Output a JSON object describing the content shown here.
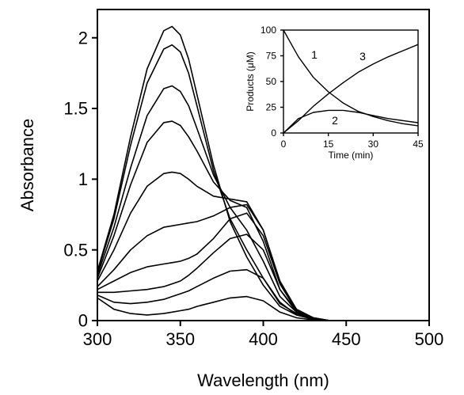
{
  "chart_data": [
    {
      "type": "line",
      "xlabel": "Wavelength (nm)",
      "ylabel": "Absorbance",
      "xlim": [
        300,
        500
      ],
      "ylim": [
        0,
        2.2
      ],
      "x_ticks": [
        300,
        350,
        400,
        450,
        500
      ],
      "x_tick_labels": [
        "300",
        "350",
        "400",
        "450",
        "500"
      ],
      "y_ticks": [
        0,
        0.5,
        1,
        1.5,
        2
      ],
      "y_tick_labels": [
        "0",
        "0.5",
        "1",
        "1.5",
        "2"
      ],
      "grid": false,
      "series": [
        {
          "x": [
            300,
            310,
            320,
            330,
            340,
            345,
            350,
            355,
            360,
            370,
            380,
            390,
            400,
            410,
            420,
            430,
            440,
            450,
            460,
            470,
            480,
            490,
            500
          ],
          "y": [
            0.35,
            0.75,
            1.3,
            1.78,
            2.05,
            2.08,
            2.02,
            1.85,
            1.6,
            1.1,
            0.7,
            0.45,
            0.25,
            0.1,
            0.04,
            0.01,
            0,
            0,
            0,
            0,
            0,
            0,
            0
          ]
        },
        {
          "x": [
            300,
            310,
            320,
            330,
            340,
            345,
            350,
            355,
            360,
            370,
            380,
            390,
            400,
            410,
            420,
            430,
            440,
            450,
            460,
            470,
            480,
            490,
            500
          ],
          "y": [
            0.34,
            0.72,
            1.24,
            1.68,
            1.92,
            1.95,
            1.9,
            1.75,
            1.52,
            1.06,
            0.72,
            0.5,
            0.3,
            0.12,
            0.05,
            0.01,
            0,
            0,
            0,
            0,
            0,
            0,
            0
          ]
        },
        {
          "x": [
            300,
            310,
            320,
            330,
            340,
            345,
            350,
            355,
            360,
            370,
            380,
            390,
            400,
            410,
            420,
            430,
            440,
            450,
            460,
            470,
            480,
            490,
            500
          ],
          "y": [
            0.32,
            0.66,
            1.08,
            1.45,
            1.64,
            1.66,
            1.62,
            1.52,
            1.36,
            1.03,
            0.8,
            0.64,
            0.42,
            0.17,
            0.06,
            0.01,
            0,
            0,
            0,
            0,
            0,
            0,
            0
          ]
        },
        {
          "x": [
            300,
            310,
            320,
            330,
            340,
            345,
            350,
            355,
            360,
            370,
            380,
            390,
            400,
            410,
            420,
            430,
            440,
            450,
            460,
            470,
            480,
            490,
            500
          ],
          "y": [
            0.3,
            0.6,
            0.96,
            1.26,
            1.4,
            1.41,
            1.38,
            1.3,
            1.2,
            0.98,
            0.85,
            0.8,
            0.56,
            0.22,
            0.07,
            0.015,
            0,
            0,
            0,
            0,
            0,
            0,
            0
          ]
        },
        {
          "x": [
            300,
            310,
            320,
            330,
            340,
            345,
            350,
            355,
            360,
            370,
            380,
            390,
            400,
            410,
            420,
            430,
            440,
            450,
            460,
            470,
            480,
            490,
            500
          ],
          "y": [
            0.28,
            0.5,
            0.76,
            0.95,
            1.04,
            1.05,
            1.04,
            1.0,
            0.95,
            0.88,
            0.86,
            0.84,
            0.64,
            0.27,
            0.08,
            0.02,
            0,
            0,
            0,
            0,
            0,
            0,
            0
          ]
        },
        {
          "x": [
            300,
            310,
            320,
            330,
            340,
            345,
            350,
            355,
            360,
            370,
            380,
            390,
            400,
            410,
            420,
            430,
            440,
            450,
            460,
            470,
            480,
            490,
            500
          ],
          "y": [
            0.24,
            0.36,
            0.5,
            0.6,
            0.66,
            0.67,
            0.68,
            0.69,
            0.7,
            0.74,
            0.8,
            0.82,
            0.64,
            0.28,
            0.08,
            0.02,
            0,
            0,
            0,
            0,
            0,
            0,
            0
          ]
        },
        {
          "x": [
            300,
            310,
            320,
            330,
            340,
            345,
            350,
            355,
            360,
            370,
            380,
            390,
            400,
            410,
            420,
            430,
            440,
            450,
            460,
            470,
            480,
            490,
            500
          ],
          "y": [
            0.22,
            0.28,
            0.34,
            0.38,
            0.4,
            0.41,
            0.42,
            0.44,
            0.47,
            0.58,
            0.72,
            0.76,
            0.6,
            0.26,
            0.07,
            0.02,
            0,
            0,
            0,
            0,
            0,
            0,
            0
          ]
        },
        {
          "x": [
            300,
            310,
            320,
            330,
            340,
            345,
            350,
            355,
            360,
            370,
            380,
            390,
            400,
            410,
            420,
            430,
            440,
            450,
            460,
            470,
            480,
            490,
            500
          ],
          "y": [
            0.2,
            0.2,
            0.21,
            0.22,
            0.24,
            0.26,
            0.28,
            0.32,
            0.37,
            0.48,
            0.58,
            0.61,
            0.5,
            0.22,
            0.06,
            0.015,
            0,
            0,
            0,
            0,
            0,
            0,
            0
          ]
        },
        {
          "x": [
            300,
            310,
            320,
            330,
            340,
            345,
            350,
            355,
            360,
            370,
            380,
            390,
            400,
            410,
            420,
            430,
            440,
            450,
            460,
            470,
            480,
            490,
            500
          ],
          "y": [
            0.18,
            0.13,
            0.12,
            0.13,
            0.15,
            0.17,
            0.19,
            0.21,
            0.24,
            0.3,
            0.35,
            0.36,
            0.3,
            0.13,
            0.04,
            0.01,
            0,
            0,
            0,
            0,
            0,
            0,
            0
          ]
        },
        {
          "x": [
            300,
            310,
            320,
            330,
            340,
            345,
            350,
            355,
            360,
            370,
            380,
            390,
            400,
            410,
            420,
            430,
            440,
            450,
            460,
            470,
            480,
            490,
            500
          ],
          "y": [
            0.16,
            0.08,
            0.05,
            0.04,
            0.05,
            0.06,
            0.07,
            0.08,
            0.1,
            0.13,
            0.16,
            0.17,
            0.14,
            0.06,
            0.02,
            0.005,
            0,
            0,
            0,
            0,
            0,
            0,
            0
          ]
        }
      ]
    },
    {
      "type": "line",
      "xlabel": "Time (min)",
      "ylabel": "Products (μM)",
      "xlim": [
        0,
        45
      ],
      "ylim": [
        0,
        100
      ],
      "x_ticks": [
        0,
        15,
        30,
        45
      ],
      "x_tick_labels": [
        "0",
        "15",
        "30",
        "45"
      ],
      "y_ticks": [
        0,
        25,
        50,
        75,
        100
      ],
      "y_tick_labels": [
        "0",
        "25",
        "50",
        "75",
        "100"
      ],
      "grid": false,
      "series": [
        {
          "label": "1",
          "x": [
            0,
            5,
            10,
            15,
            20,
            25,
            30,
            35,
            40,
            45
          ],
          "y": [
            100,
            74,
            54,
            40,
            29,
            21,
            16,
            12,
            9,
            7
          ]
        },
        {
          "label": "2",
          "x": [
            0,
            5,
            10,
            15,
            20,
            25,
            30,
            35,
            40,
            45
          ],
          "y": [
            0,
            14,
            20,
            22,
            22,
            20,
            17,
            14,
            12,
            10
          ]
        },
        {
          "label": "3",
          "x": [
            0,
            5,
            10,
            15,
            20,
            25,
            30,
            35,
            40,
            45
          ],
          "y": [
            0,
            12,
            26,
            38,
            49,
            59,
            67,
            74,
            80,
            86
          ]
        }
      ]
    }
  ]
}
